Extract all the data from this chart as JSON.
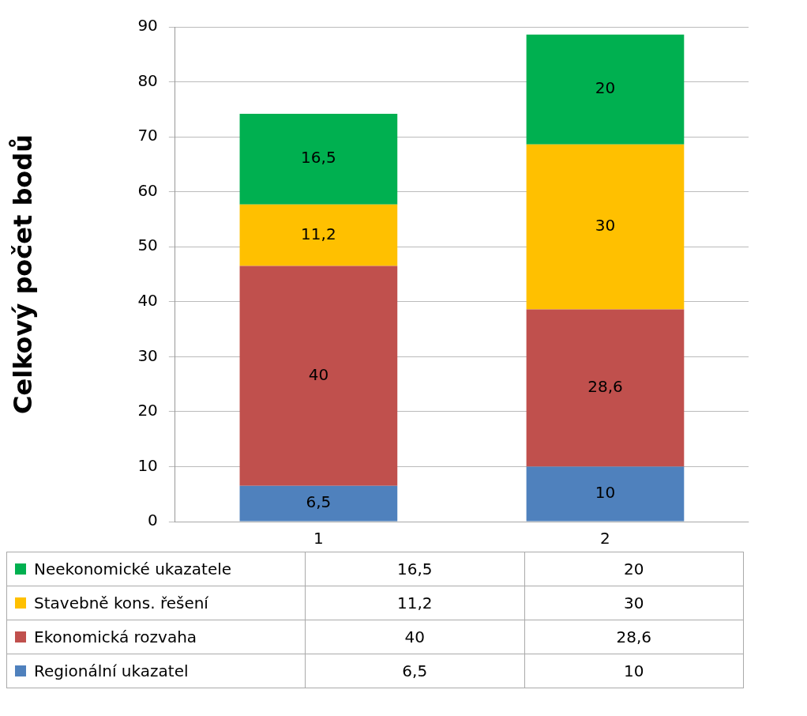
{
  "chart_data": {
    "type": "bar",
    "stacked": true,
    "ylabel": "Celkový počet bodů",
    "categories": [
      "1",
      "2"
    ],
    "series": [
      {
        "name": "Regionální ukazatel",
        "color": "#4f81bd",
        "values": [
          6.5,
          10
        ],
        "value_labels": [
          "6,5",
          "10"
        ]
      },
      {
        "name": "Ekonomická rozvaha",
        "color": "#c0504d",
        "values": [
          40,
          28.6
        ],
        "value_labels": [
          "40",
          "28,6"
        ]
      },
      {
        "name": "Stavebně kons. řešení",
        "color": "#ffc000",
        "values": [
          11.2,
          30
        ],
        "value_labels": [
          "11,2",
          "30"
        ]
      },
      {
        "name": "Neekonomické ukazatele",
        "color": "#00b050",
        "values": [
          16.5,
          20
        ],
        "value_labels": [
          "16,5",
          "20"
        ]
      }
    ],
    "ylim": [
      0,
      90
    ],
    "yticks": [
      0,
      10,
      20,
      30,
      40,
      50,
      60,
      70,
      80,
      90
    ],
    "grid": "y",
    "legend": "bottom"
  }
}
